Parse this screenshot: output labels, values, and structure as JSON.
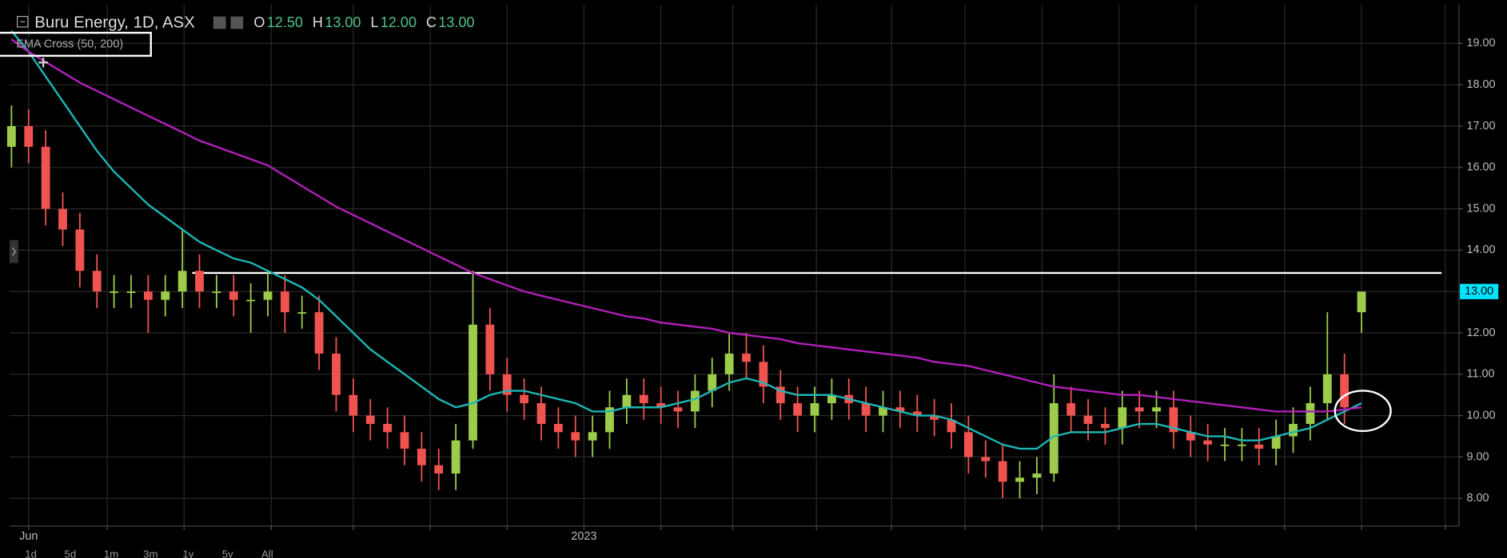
{
  "chart_data": {
    "type": "candlestick",
    "title": "Buru Energy, 1D, ASX",
    "ohlc_labels": [
      "O",
      "H",
      "L",
      "C"
    ],
    "ohlc_values": [
      {
        "value": 12.5,
        "label": "12.50"
      },
      {
        "value": 13,
        "label": "13.00"
      },
      {
        "value": 12,
        "label": "12.00"
      },
      {
        "value": 13,
        "label": "13.00"
      }
    ],
    "indicator": "EMA Cross (50, 200)",
    "up_color": "#9ccc4a",
    "down_color": "#ef5350",
    "open": [
      16.5,
      17,
      16.5,
      15,
      14.5,
      13.5,
      13,
      13,
      13,
      12.8,
      13,
      13.5,
      13,
      13,
      12.8,
      12.8,
      13,
      12.5,
      12.5,
      11.5,
      10.5,
      10,
      9.8,
      9.6,
      9.2,
      8.8,
      8.6,
      9.4,
      12.2,
      11,
      10.5,
      10.3,
      9.8,
      9.6,
      9.4,
      9.6,
      10.2,
      10.5,
      10.3,
      10.2,
      10.1,
      10.6,
      11,
      11.5,
      11.3,
      10.7,
      10.3,
      10,
      10.3,
      10.5,
      10.3,
      10,
      10.2,
      10.1,
      10,
      9.9,
      9.6,
      9,
      8.9,
      8.4,
      8.5,
      8.6,
      10.3,
      10,
      9.8,
      9.7,
      10.2,
      10.1,
      10.2,
      9.6,
      9.4,
      9.3,
      9.3,
      9.3,
      9.2,
      9.5,
      9.8,
      10.3,
      11,
      12.5
    ],
    "high": [
      17.5,
      17.4,
      16.9,
      15.4,
      14.9,
      13.9,
      13.4,
      13.4,
      13.4,
      13.4,
      14.5,
      13.9,
      13.4,
      13.4,
      13.2,
      13.5,
      13.4,
      12.9,
      12.9,
      11.9,
      10.9,
      10.4,
      10.2,
      10,
      9.6,
      9.2,
      9.8,
      13.5,
      12.6,
      11.4,
      10.9,
      10.7,
      10.2,
      10,
      10,
      10.6,
      10.9,
      10.9,
      10.7,
      10.6,
      11,
      11.4,
      12,
      12,
      11.7,
      11.1,
      10.7,
      10.7,
      10.9,
      10.9,
      10.7,
      10.6,
      10.6,
      10.5,
      10.4,
      10.3,
      10,
      9.4,
      9.3,
      8.9,
      9,
      11,
      10.7,
      10.4,
      10.2,
      10.6,
      10.6,
      10.6,
      10.6,
      10,
      9.8,
      9.7,
      9.7,
      9.7,
      9.9,
      10.2,
      10.7,
      12.5,
      11.5,
      13
    ],
    "low": [
      16,
      16.1,
      14.6,
      14.1,
      13.1,
      12.6,
      12.6,
      12.6,
      12,
      12.4,
      12.6,
      12.6,
      12.6,
      12.4,
      12,
      12.4,
      12,
      12.1,
      11.1,
      10.1,
      9.6,
      9.4,
      9.2,
      8.8,
      8.4,
      8.2,
      8.2,
      9.2,
      10.6,
      10.1,
      9.9,
      9.4,
      9.2,
      9,
      9,
      9.2,
      9.8,
      9.9,
      9.8,
      9.7,
      9.7,
      10.2,
      10.6,
      10.9,
      10.3,
      9.9,
      9.6,
      9.6,
      9.9,
      9.9,
      9.6,
      9.6,
      9.7,
      9.6,
      9.5,
      9.2,
      8.6,
      8.5,
      8,
      8,
      8.1,
      8.4,
      9.6,
      9.4,
      9.3,
      9.3,
      9.7,
      9.7,
      9.2,
      9,
      8.9,
      8.9,
      8.9,
      8.8,
      8.8,
      9.1,
      9.4,
      9.9,
      9.8,
      12
    ],
    "close": [
      17,
      16.5,
      15,
      14.5,
      13.5,
      13,
      13,
      13,
      12.8,
      13,
      13.5,
      13,
      13,
      12.8,
      12.8,
      13,
      12.5,
      12.5,
      11.5,
      10.5,
      10,
      9.8,
      9.6,
      9.2,
      8.8,
      8.6,
      9.4,
      12.2,
      11,
      10.5,
      10.3,
      9.8,
      9.6,
      9.4,
      9.6,
      10.2,
      10.5,
      10.3,
      10.2,
      10.1,
      10.6,
      11,
      11.5,
      11.3,
      10.7,
      10.3,
      10,
      10.3,
      10.5,
      10.3,
      10,
      10.2,
      10.1,
      10,
      9.9,
      9.6,
      9,
      8.9,
      8.4,
      8.5,
      8.6,
      10.3,
      10,
      9.8,
      9.7,
      10.2,
      10.1,
      10.2,
      9.6,
      9.4,
      9.3,
      9.3,
      9.3,
      9.2,
      9.5,
      9.8,
      10.3,
      11,
      10.2,
      13
    ],
    "last_price_label": "13.00",
    "last_price_color": "#00e5ff",
    "series": [
      {
        "color": "#1fb5b5",
        "values": [
          19.3,
          18.8,
          18.2,
          17.6,
          17,
          16.4,
          15.9,
          15.5,
          15.1,
          14.8,
          14.5,
          14.2,
          14,
          13.8,
          13.7,
          13.5,
          13.3,
          13.1,
          12.8,
          12.4,
          12,
          11.6,
          11.3,
          11,
          10.7,
          10.4,
          10.2,
          10.3,
          10.5,
          10.6,
          10.6,
          10.5,
          10.4,
          10.3,
          10.1,
          10.1,
          10.2,
          10.2,
          10.2,
          10.3,
          10.4,
          10.6,
          10.8,
          10.9,
          10.8,
          10.6,
          10.5,
          10.5,
          10.5,
          10.4,
          10.3,
          10.2,
          10.1,
          10,
          10,
          9.9,
          9.7,
          9.5,
          9.3,
          9.2,
          9.2,
          9.5,
          9.6,
          9.6,
          9.6,
          9.7,
          9.8,
          9.8,
          9.7,
          9.6,
          9.5,
          9.5,
          9.4,
          9.4,
          9.5,
          9.6,
          9.7,
          9.9,
          10.1,
          10.3
        ]
      },
      {
        "color": "#b020b8",
        "values": [
          19.1,
          18.8,
          18.55,
          18.3,
          18.05,
          17.85,
          17.65,
          17.45,
          17.25,
          17.05,
          16.85,
          16.65,
          16.5,
          16.35,
          16.2,
          16.05,
          15.8,
          15.55,
          15.3,
          15.05,
          14.85,
          14.65,
          14.45,
          14.25,
          14.05,
          13.85,
          13.65,
          13.45,
          13.3,
          13.15,
          13,
          12.9,
          12.8,
          12.7,
          12.6,
          12.5,
          12.4,
          12.35,
          12.25,
          12.2,
          12.15,
          12.1,
          12,
          11.95,
          11.9,
          11.85,
          11.75,
          11.7,
          11.65,
          11.6,
          11.55,
          11.5,
          11.45,
          11.4,
          11.3,
          11.25,
          11.2,
          11.1,
          11,
          10.9,
          10.8,
          10.7,
          10.65,
          10.6,
          10.55,
          10.5,
          10.5,
          10.45,
          10.4,
          10.35,
          10.3,
          10.25,
          10.2,
          10.15,
          10.1,
          10.1,
          10.1,
          10.1,
          10.15,
          10.2
        ]
      }
    ],
    "hline": 13.45,
    "xlim": [
      -0.11,
      84.7
    ],
    "ylim": [
      7.33,
      19.93
    ],
    "yticks": [
      {
        "value": 8,
        "label": "8.00"
      },
      {
        "value": 9,
        "label": "9.00"
      },
      {
        "value": 10,
        "label": "10.00"
      },
      {
        "value": 11,
        "label": "11.00"
      },
      {
        "value": 12,
        "label": "12.00"
      },
      {
        "value": 13,
        "label": "13.00"
      },
      {
        "value": 14,
        "label": "14.00"
      },
      {
        "value": 15,
        "label": "15.00"
      },
      {
        "value": 16,
        "label": "16.00"
      },
      {
        "value": 17,
        "label": "17.00"
      },
      {
        "value": 18,
        "label": "18.00"
      },
      {
        "value": 19,
        "label": "19.00"
      }
    ],
    "xticks": [
      {
        "value": 1,
        "label": "Jun"
      },
      {
        "value": 33.5,
        "label": "2023"
      }
    ],
    "xgrid": [
      1,
      5.6,
      10.1,
      15.2,
      20,
      24.5,
      29,
      33.5,
      38,
      42.2,
      47.1,
      51.5,
      55.8,
      60.3,
      64.8,
      69.3,
      74.5,
      79,
      83.9
    ],
    "grid": true,
    "range_buttons": [
      "1d",
      "5d",
      "1m",
      "3m",
      "1y",
      "5y",
      "All"
    ]
  }
}
